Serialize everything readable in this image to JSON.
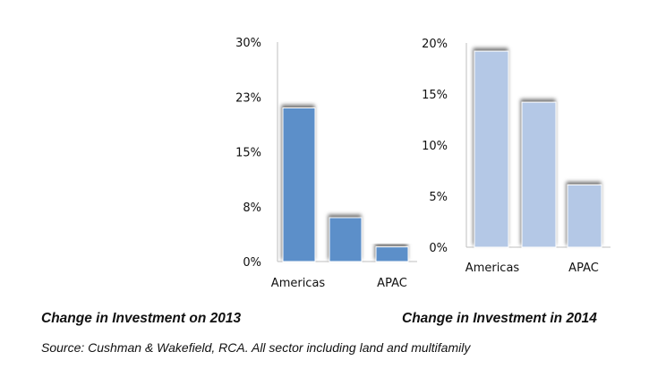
{
  "chart_data": [
    {
      "type": "bar",
      "title": "Change in Investment on 2013",
      "categories": [
        "Americas",
        "",
        "APAC"
      ],
      "category_labels_shown": [
        "Americas",
        "APAC"
      ],
      "values": [
        21.0,
        6.0,
        2.0
      ],
      "y_ticks": [
        "30%",
        "23%",
        "15%",
        "8%",
        "0%"
      ],
      "ylim": [
        0,
        30
      ],
      "bar_color": "#5b8fc9",
      "grid": false,
      "legend": "none"
    },
    {
      "type": "bar",
      "title": "Change in Investment in 2014",
      "categories": [
        "Americas",
        "",
        "APAC"
      ],
      "category_labels_shown": [
        "Americas",
        "APAC"
      ],
      "values": [
        19.2,
        14.2,
        6.1
      ],
      "y_ticks": [
        "20%",
        "15%",
        "10%",
        "5%",
        "0%"
      ],
      "ylim": [
        0,
        20
      ],
      "bar_color": "#b4c8e6",
      "grid": false,
      "legend": "none"
    }
  ],
  "captions": {
    "left": "Change in Investment on 2013",
    "right": "Change in Investment in 2014"
  },
  "source": "Source: Cushman & Wakefield, RCA. All sector including land and multifamily"
}
